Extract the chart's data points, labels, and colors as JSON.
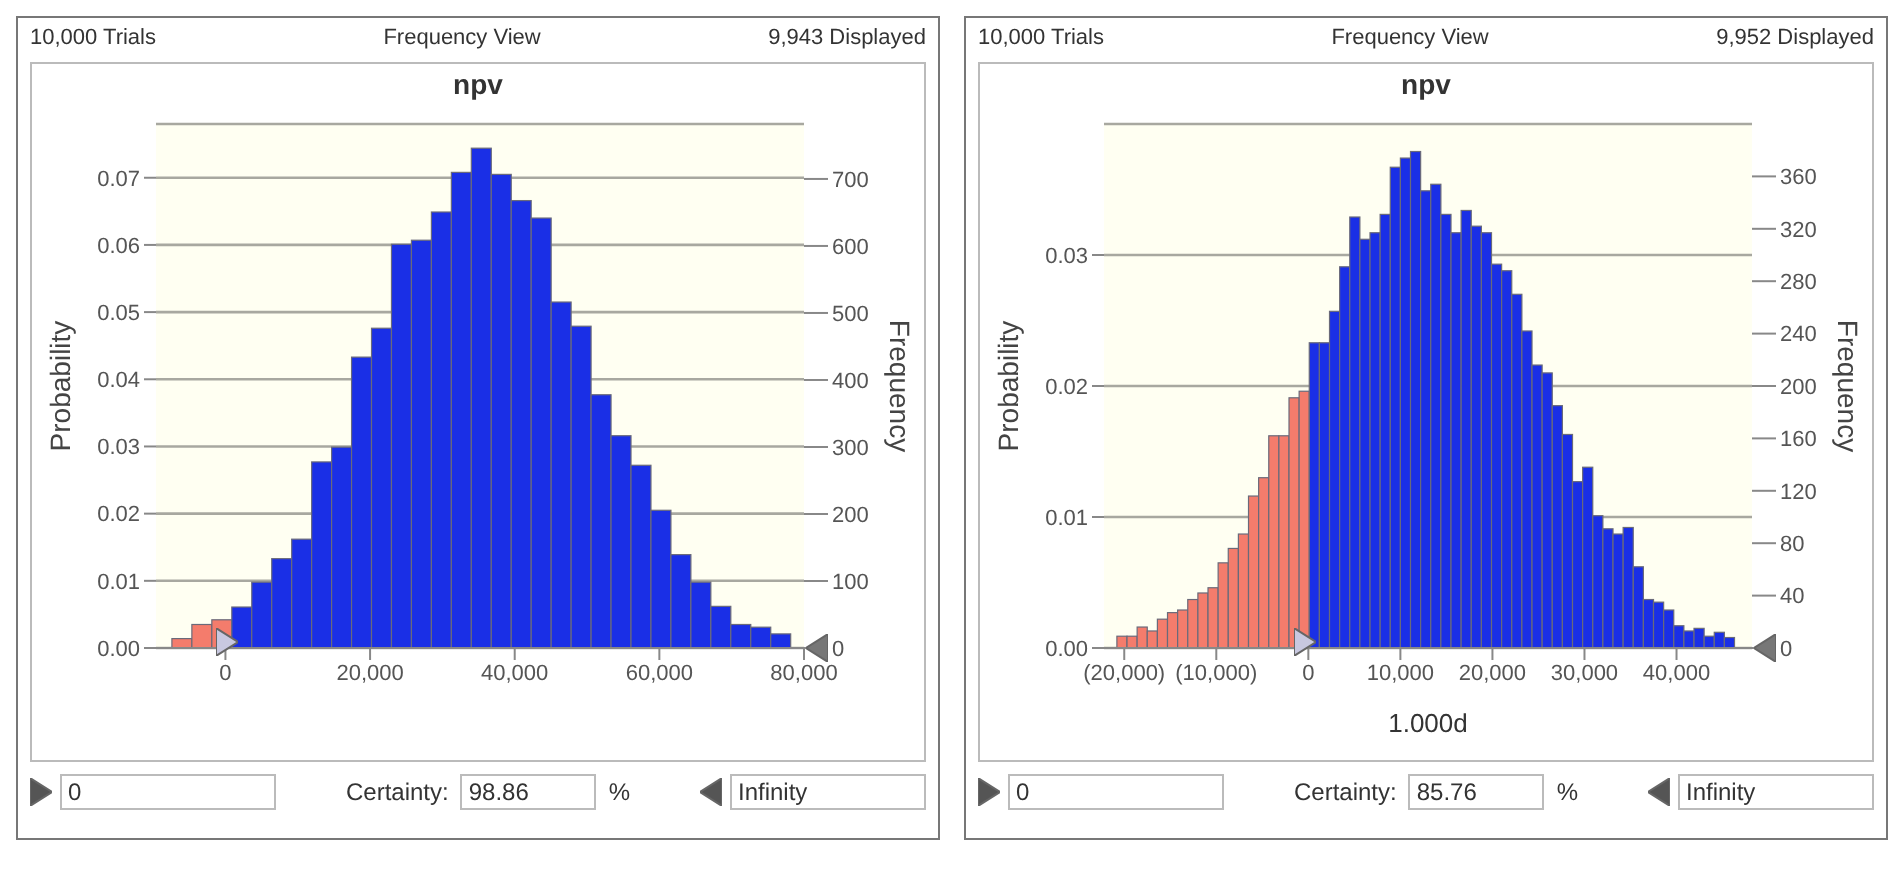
{
  "chart_data": [
    {
      "type": "histogram",
      "title": "npv",
      "ylabel": "Probability",
      "y2label": "Frequency",
      "bins": [
        -7400,
        -4640,
        -1880,
        880,
        3640,
        6400,
        9160,
        11920,
        14680,
        17440,
        20200,
        22960,
        25720,
        28480,
        31240,
        34000,
        36760,
        39520,
        42280,
        45040,
        47800,
        50560,
        53320,
        56080,
        58840,
        61600,
        64360,
        67120,
        69880,
        72640,
        75400,
        78160
      ],
      "values": [
        0.0014,
        0.0035,
        0.0042,
        0.0061,
        0.0098,
        0.0133,
        0.0162,
        0.0277,
        0.0299,
        0.0433,
        0.0476,
        0.0601,
        0.0607,
        0.0649,
        0.0708,
        0.0744,
        0.0705,
        0.0666,
        0.064,
        0.0515,
        0.0479,
        0.0377,
        0.0316,
        0.0272,
        0.0205,
        0.0139,
        0.0098,
        0.0062,
        0.0035,
        0.0031,
        0.0021
      ],
      "colors": [
        "#f47c6c",
        "#f47c6c",
        "#f47c6c",
        "#1a2fe6",
        "#1a2fe6",
        "#1a2fe6",
        "#1a2fe6",
        "#1a2fe6",
        "#1a2fe6",
        "#1a2fe6",
        "#1a2fe6",
        "#1a2fe6",
        "#1a2fe6",
        "#1a2fe6",
        "#1a2fe6",
        "#1a2fe6",
        "#1a2fe6",
        "#1a2fe6",
        "#1a2fe6",
        "#1a2fe6",
        "#1a2fe6",
        "#1a2fe6",
        "#1a2fe6",
        "#1a2fe6",
        "#1a2fe6",
        "#1a2fe6",
        "#1a2fe6",
        "#1a2fe6",
        "#1a2fe6",
        "#1a2fe6",
        "#1a2fe6"
      ],
      "xlim": [
        -9600,
        80000
      ],
      "xticks": [
        0,
        {
          "value": 20000,
          "label": "20,000"
        },
        {
          "value": 40000,
          "label": "40,000"
        },
        {
          "value": 60000,
          "label": "60,000"
        },
        {
          "value": 80000,
          "label": "80,000"
        }
      ],
      "ylim": [
        0,
        0.078
      ],
      "yticks": [
        {
          "value": 0,
          "label": "0.00"
        },
        0.01,
        0.02,
        0.03,
        0.04,
        0.05,
        0.06,
        0.07
      ],
      "y2lim": [
        0,
        782
      ],
      "y2ticks": [
        0,
        100,
        200,
        300,
        400,
        500,
        600,
        700
      ],
      "grid": "y",
      "annotations": [
        "10,000 Trials",
        "Frequency View",
        "9,943 Displayed",
        "0",
        "Certainty:",
        "98.86",
        "%",
        "Infinity"
      ]
    },
    {
      "type": "histogram",
      "title": "npv",
      "xlabel": "1.000d",
      "ylabel": "Probability",
      "y2label": "Frequency",
      "bins": [
        -20800,
        -19700,
        -18600,
        -17500,
        -16400,
        -15300,
        -14200,
        -13100,
        -12000,
        -10900,
        -9800,
        -8700,
        -7600,
        -6500,
        -5400,
        -4300,
        -3200,
        -2100,
        -1000,
        100,
        1200,
        2300,
        3400,
        4500,
        5600,
        6700,
        7800,
        8900,
        10000,
        11100,
        12200,
        13300,
        14400,
        15500,
        16600,
        17700,
        18800,
        19900,
        21000,
        22100,
        23200,
        24300,
        25400,
        26500,
        27600,
        28700,
        29800,
        30900,
        32000,
        33100,
        34200,
        35300,
        36400,
        37500,
        38600,
        39700,
        40800,
        41900,
        43000,
        44100,
        45200,
        46300
      ],
      "values": [
        0.0009,
        0.0009,
        0.0016,
        0.0013,
        0.0022,
        0.0027,
        0.0029,
        0.0037,
        0.0042,
        0.0046,
        0.0065,
        0.0076,
        0.0087,
        0.0116,
        0.013,
        0.0162,
        0.0162,
        0.0191,
        0.0196,
        0.0233,
        0.0233,
        0.0257,
        0.0291,
        0.0329,
        0.0312,
        0.0317,
        0.0331,
        0.0367,
        0.0374,
        0.0379,
        0.0349,
        0.0354,
        0.0331,
        0.0317,
        0.0334,
        0.0322,
        0.0317,
        0.0293,
        0.0288,
        0.027,
        0.0242,
        0.0216,
        0.021,
        0.0185,
        0.0163,
        0.0127,
        0.0138,
        0.0101,
        0.0091,
        0.0087,
        0.0092,
        0.0062,
        0.0037,
        0.0035,
        0.0029,
        0.0017,
        0.0013,
        0.0015,
        0.0009,
        0.0012,
        0.0008
      ],
      "colors": [
        "#f47c6c",
        "#f47c6c",
        "#f47c6c",
        "#f47c6c",
        "#f47c6c",
        "#f47c6c",
        "#f47c6c",
        "#f47c6c",
        "#f47c6c",
        "#f47c6c",
        "#f47c6c",
        "#f47c6c",
        "#f47c6c",
        "#f47c6c",
        "#f47c6c",
        "#f47c6c",
        "#f47c6c",
        "#f47c6c",
        "#f47c6c",
        "#1a2fe6",
        "#1a2fe6",
        "#1a2fe6",
        "#1a2fe6",
        "#1a2fe6",
        "#1a2fe6",
        "#1a2fe6",
        "#1a2fe6",
        "#1a2fe6",
        "#1a2fe6",
        "#1a2fe6",
        "#1a2fe6",
        "#1a2fe6",
        "#1a2fe6",
        "#1a2fe6",
        "#1a2fe6",
        "#1a2fe6",
        "#1a2fe6",
        "#1a2fe6",
        "#1a2fe6",
        "#1a2fe6",
        "#1a2fe6",
        "#1a2fe6",
        "#1a2fe6",
        "#1a2fe6",
        "#1a2fe6",
        "#1a2fe6",
        "#1a2fe6",
        "#1a2fe6",
        "#1a2fe6",
        "#1a2fe6",
        "#1a2fe6",
        "#1a2fe6",
        "#1a2fe6",
        "#1a2fe6",
        "#1a2fe6",
        "#1a2fe6",
        "#1a2fe6",
        "#1a2fe6",
        "#1a2fe6",
        "#1a2fe6",
        "#1a2fe6"
      ],
      "xlim": [
        -22200,
        48200
      ],
      "xticks": [
        {
          "value": -20000,
          "label": "(20,000)"
        },
        {
          "value": -10000,
          "label": "(10,000)"
        },
        0,
        {
          "value": 10000,
          "label": "10,000"
        },
        {
          "value": 20000,
          "label": "20,000"
        },
        {
          "value": 30000,
          "label": "30,000"
        },
        {
          "value": 40000,
          "label": "40,000"
        }
      ],
      "ylim": [
        0,
        0.04
      ],
      "yticks": [
        {
          "value": 0,
          "label": "0.00"
        },
        0.01,
        0.02,
        0.03
      ],
      "y2lim": [
        0,
        400
      ],
      "y2ticks": [
        0,
        40,
        80,
        120,
        160,
        200,
        240,
        280,
        320,
        360
      ],
      "grid": "y",
      "annotations": [
        "10,000 Trials",
        "Frequency View",
        "9,952 Displayed",
        "0",
        "Certainty:",
        "85.76",
        "%",
        "Infinity"
      ]
    }
  ]
}
